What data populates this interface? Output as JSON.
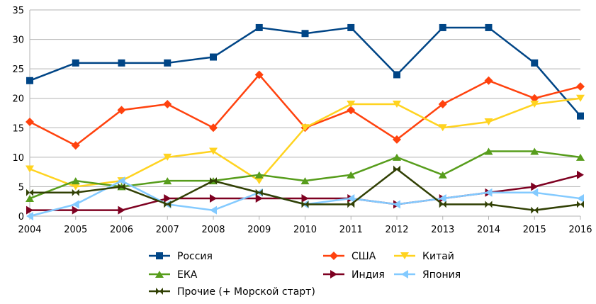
{
  "chart_data": {
    "type": "line",
    "title": "",
    "xlabel": "",
    "ylabel": "",
    "categories": [
      "2004",
      "2005",
      "2006",
      "2007",
      "2008",
      "2009",
      "2010",
      "2011",
      "2012",
      "2013",
      "2014",
      "2015",
      "2016"
    ],
    "ylim": [
      0,
      35
    ],
    "yticks": [
      0,
      5,
      10,
      15,
      20,
      25,
      30,
      35
    ],
    "grid": "horizontal",
    "legend_position": "bottom",
    "series": [
      {
        "name": "Россия",
        "color": "#004586",
        "marker": "square",
        "values": [
          23,
          26,
          26,
          26,
          27,
          32,
          31,
          32,
          24,
          32,
          32,
          26,
          17
        ]
      },
      {
        "name": "США",
        "color": "#ff420e",
        "marker": "diamond",
        "values": [
          16,
          12,
          18,
          19,
          15,
          24,
          15,
          18,
          13,
          19,
          23,
          20,
          22
        ]
      },
      {
        "name": "Китай",
        "color": "#ffd320",
        "marker": "triangle-down",
        "values": [
          8,
          5,
          6,
          10,
          11,
          6,
          15,
          19,
          19,
          15,
          16,
          19,
          20
        ]
      },
      {
        "name": "ЕКА",
        "color": "#579d1c",
        "marker": "triangle-up",
        "values": [
          3,
          6,
          5,
          6,
          6,
          7,
          6,
          7,
          10,
          7,
          11,
          11,
          10
        ]
      },
      {
        "name": "Индия",
        "color": "#7e0021",
        "marker": "triangle-right",
        "values": [
          1,
          1,
          1,
          3,
          3,
          3,
          3,
          3,
          2,
          3,
          4,
          5,
          7
        ]
      },
      {
        "name": "Япония",
        "color": "#83caff",
        "marker": "triangle-left",
        "values": [
          0,
          2,
          6,
          2,
          1,
          4,
          2,
          3,
          2,
          3,
          4,
          4,
          3
        ]
      },
      {
        "name": "Прочие (+ Морской старт)",
        "color": "#314004",
        "marker": "bowtie",
        "values": [
          4,
          4,
          5,
          2,
          6,
          4,
          2,
          2,
          8,
          2,
          2,
          1,
          2
        ]
      }
    ]
  }
}
